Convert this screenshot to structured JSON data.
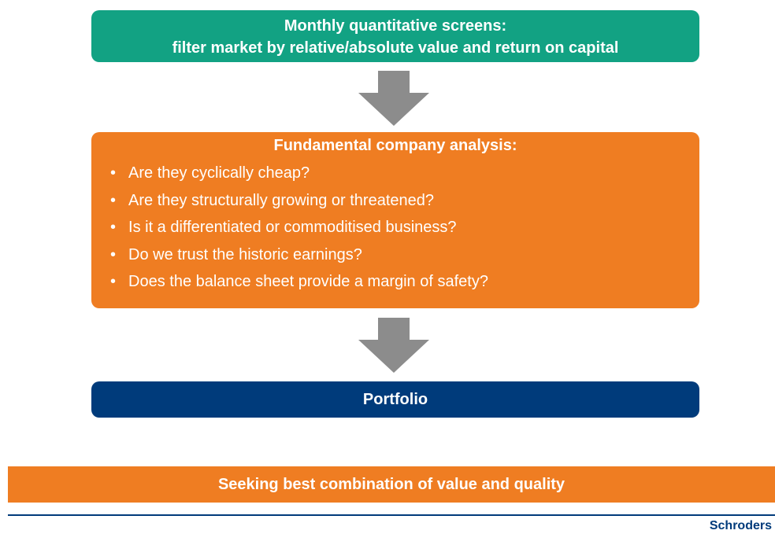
{
  "steps": [
    {
      "title": "Monthly quantitative screens:",
      "subtitle": "filter market by relative/absolute value and return on capital"
    },
    {
      "title": "Fundamental company analysis:",
      "bullets": [
        "Are they cyclically cheap?",
        "Are they structurally growing or threatened?",
        "Is it a differentiated or commoditised business?",
        "Do we trust the historic earnings?",
        "Does the balance sheet provide a margin of safety?"
      ]
    },
    {
      "title": "Portfolio"
    }
  ],
  "banner": "Seeking best combination of value and quality",
  "logo": "Schroders"
}
